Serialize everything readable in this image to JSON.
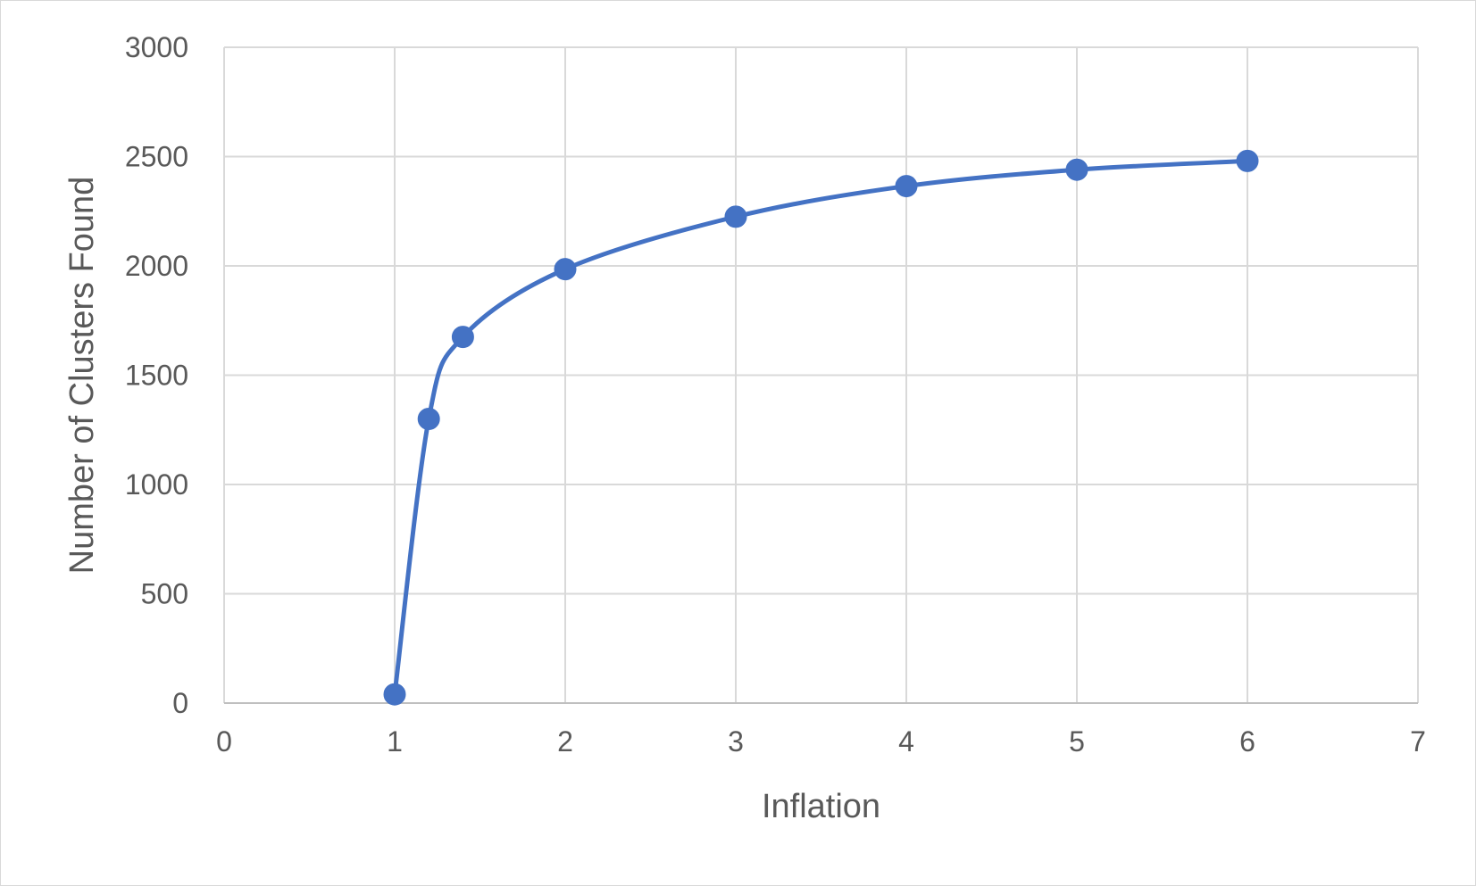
{
  "chart_data": {
    "type": "scatter",
    "title": "",
    "xlabel": "Inflation",
    "ylabel": "Number of Clusters Found",
    "xlim": [
      0,
      7
    ],
    "ylim": [
      0,
      3000
    ],
    "xticks": [
      0,
      1,
      2,
      3,
      4,
      5,
      6,
      7
    ],
    "yticks": [
      0,
      500,
      1000,
      1500,
      2000,
      2500,
      3000
    ],
    "grid": true,
    "legend": "none",
    "smooth_line": true,
    "series": [
      {
        "x": [
          1,
          1.2,
          1.4,
          2,
          3,
          4,
          5,
          6
        ],
        "y": [
          40,
          1300,
          1675,
          1985,
          2225,
          2365,
          2440,
          2480
        ],
        "color": "#4472c4"
      }
    ]
  }
}
